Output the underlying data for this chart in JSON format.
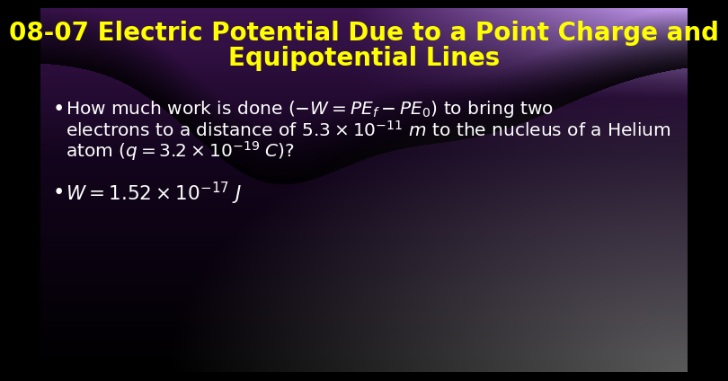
{
  "title_line1": "08-07 Electric Potential Due to a Point Charge and",
  "title_line2": "Equipotential Lines",
  "title_color": "#FFFF00",
  "title_fontsize": 20,
  "bullet_color": "#FFFFFF",
  "bullet_fontsize": 14.5,
  "bullet1_line1": "How much work is done ($-W = PE_f - PE_0$) to bring two",
  "bullet1_line2": "electrons to a distance of $5.3 \\times 10^{-11}$ $m$ to the nucleus of a Helium",
  "bullet1_line3": "atom ($q = 3.2 \\times 10^{-19}$ $C$)?",
  "bullet2_text": "$W = 1.52 \\times 10^{-17}$ $J$"
}
